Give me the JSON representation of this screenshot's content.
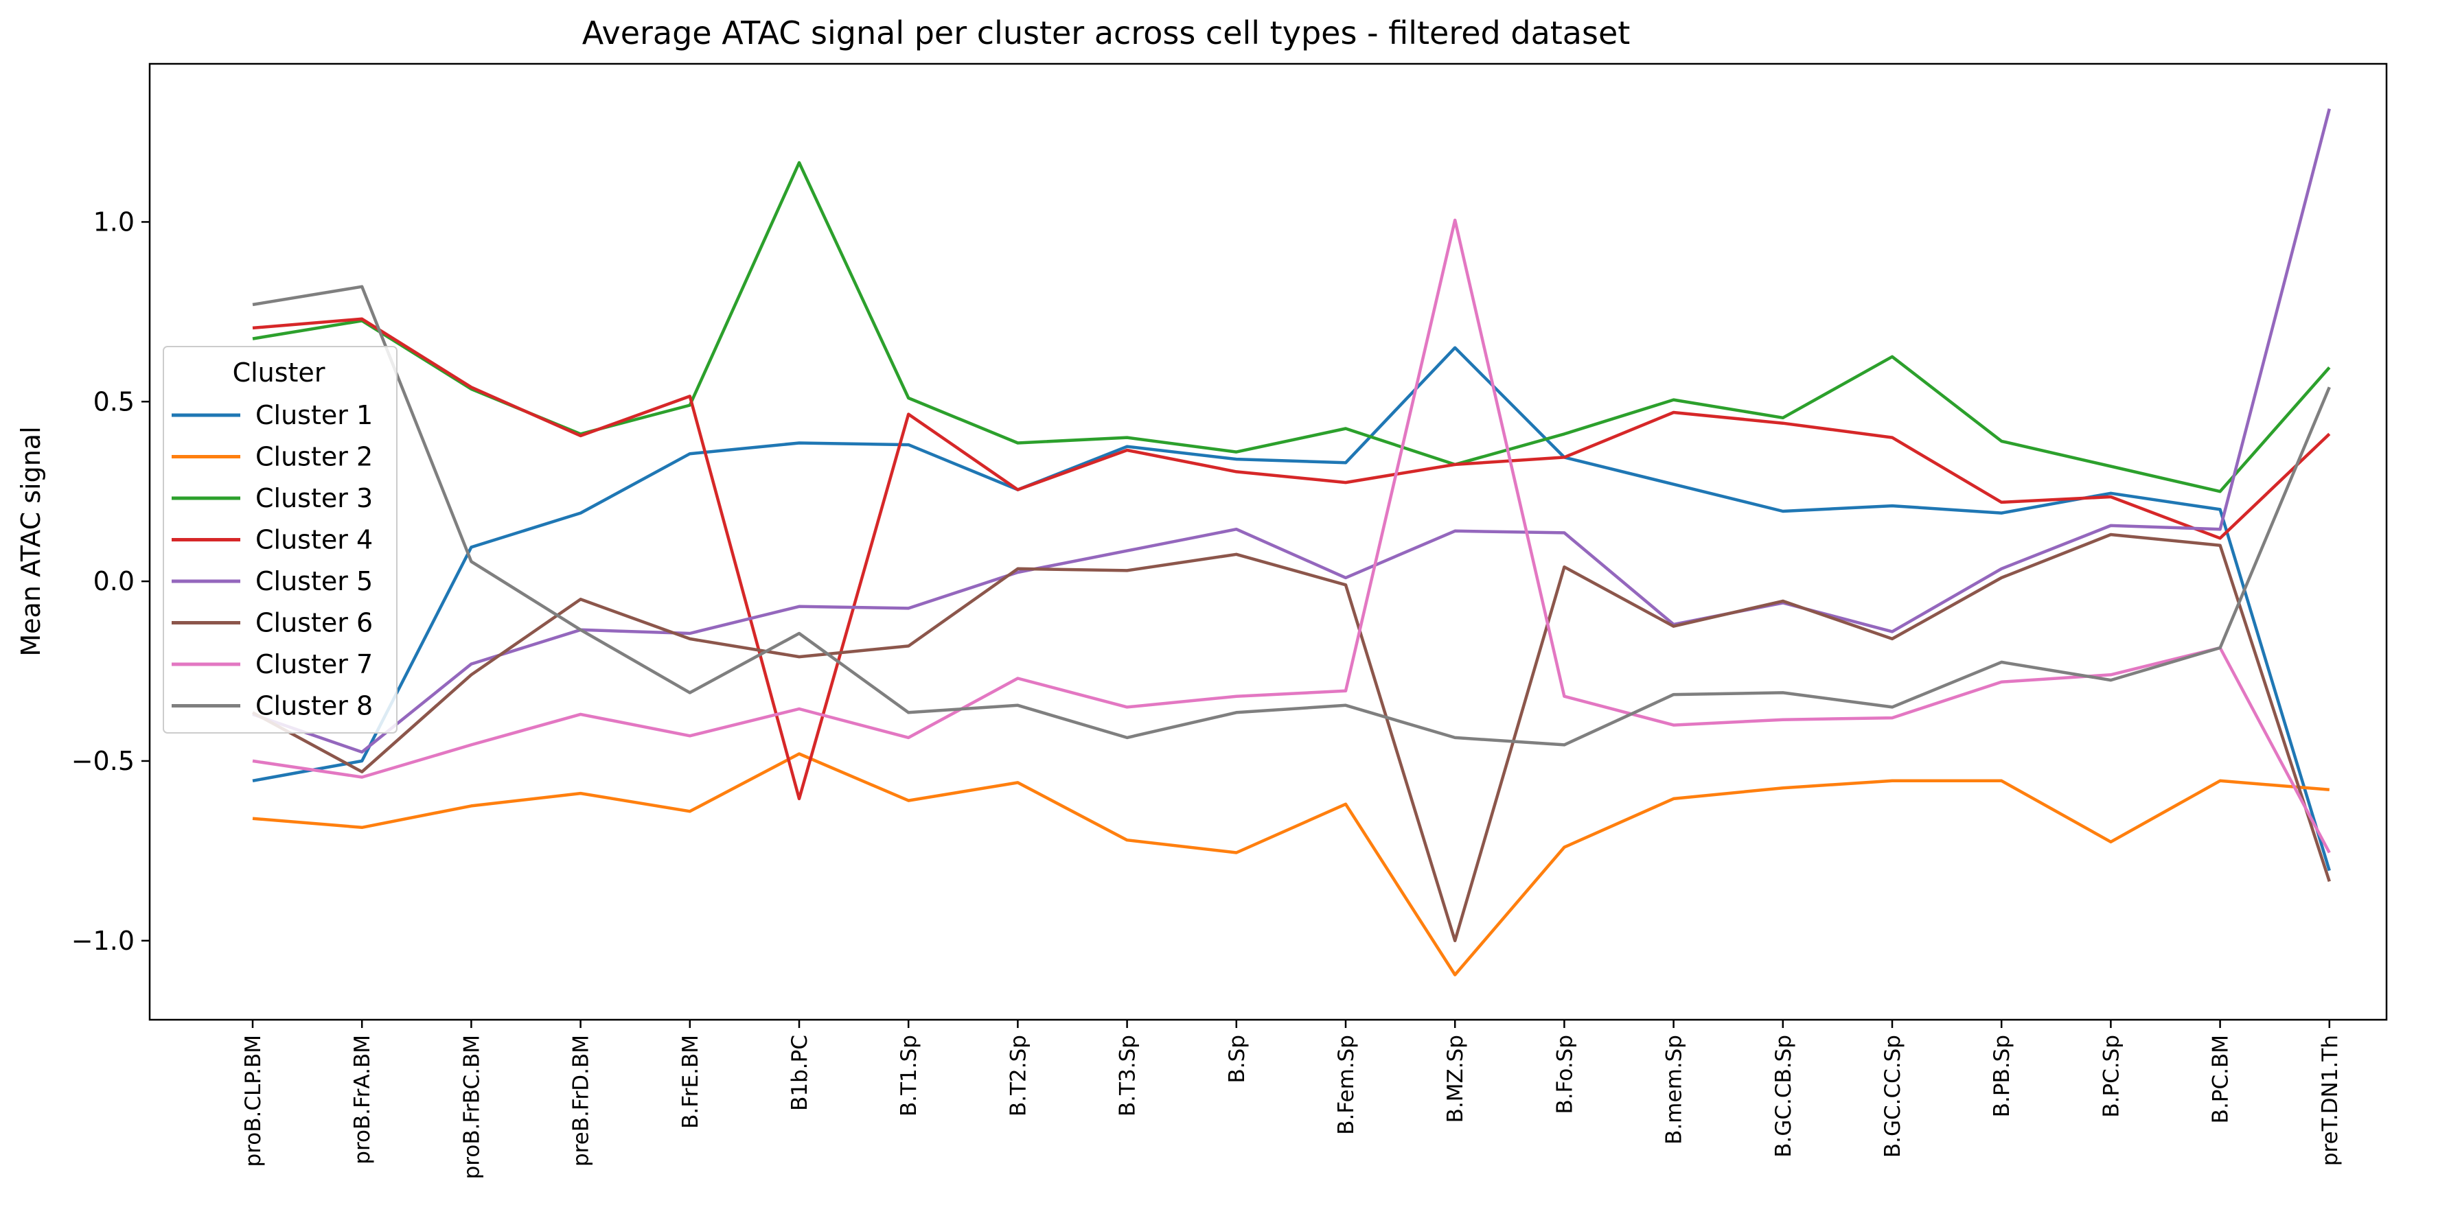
{
  "chart_data": {
    "type": "line",
    "title": "Average ATAC signal per cluster across cell types - filtered dataset",
    "xlabel": "",
    "ylabel": "Mean ATAC signal",
    "ylim": [
      -1.22,
      1.44
    ],
    "yticks": [
      -1.0,
      -0.5,
      0.0,
      0.5,
      1.0
    ],
    "ytick_labels": [
      "−1.0",
      "−0.5",
      "0.0",
      "0.5",
      "1.0"
    ],
    "grid": false,
    "legend": {
      "title": "Cluster",
      "placement": "upper-left"
    },
    "categories": [
      "proB.CLP.BM",
      "proB.FrA.BM",
      "proB.FrBC.BM",
      "preB.FrD.BM",
      "B.FrE.BM",
      "B1b.PC",
      "B.T1.Sp",
      "B.T2.Sp",
      "B.T3.Sp",
      "B.Sp",
      "B.Fem.Sp",
      "B.MZ.Sp",
      "B.Fo.Sp",
      "B.mem.Sp",
      "B.GC.CB.Sp",
      "B.GC.CC.Sp",
      "B.PB.Sp",
      "B.PC.Sp",
      "B.PC.BM",
      "preT.DN1.Th"
    ],
    "series": [
      {
        "name": "Cluster 1",
        "color": "#1f77b4",
        "values": [
          -0.555,
          -0.5,
          0.095,
          0.19,
          0.355,
          0.385,
          0.38,
          0.255,
          0.375,
          0.34,
          0.33,
          0.65,
          0.345,
          0.27,
          0.195,
          0.21,
          0.19,
          0.245,
          0.2,
          -0.805
        ]
      },
      {
        "name": "Cluster 2",
        "color": "#ff7f0e",
        "values": [
          -0.66,
          -0.685,
          -0.625,
          -0.59,
          -0.64,
          -0.48,
          -0.61,
          -0.56,
          -0.72,
          -0.755,
          -0.62,
          -1.095,
          -0.74,
          -0.605,
          -0.575,
          -0.555,
          -0.555,
          -0.725,
          -0.555,
          -0.58
        ]
      },
      {
        "name": "Cluster 3",
        "color": "#2ca02c",
        "values": [
          0.675,
          0.725,
          0.535,
          0.41,
          0.49,
          1.165,
          0.51,
          0.385,
          0.4,
          0.36,
          0.425,
          0.325,
          0.41,
          0.505,
          0.455,
          0.625,
          0.39,
          0.32,
          0.25,
          0.595
        ]
      },
      {
        "name": "Cluster 4",
        "color": "#d62728",
        "values": [
          0.705,
          0.73,
          0.54,
          0.405,
          0.515,
          -0.605,
          0.465,
          0.255,
          0.365,
          0.305,
          0.275,
          0.325,
          0.345,
          0.47,
          0.44,
          0.4,
          0.22,
          0.235,
          0.12,
          0.41
        ]
      },
      {
        "name": "Cluster 5",
        "color": "#9467bd",
        "values": [
          -0.37,
          -0.475,
          -0.23,
          -0.135,
          -0.145,
          -0.07,
          -0.075,
          0.025,
          0.085,
          0.145,
          0.01,
          0.14,
          0.135,
          -0.12,
          -0.06,
          -0.14,
          0.035,
          0.155,
          0.145,
          1.315
        ]
      },
      {
        "name": "Cluster 6",
        "color": "#8c564b",
        "values": [
          -0.365,
          -0.53,
          -0.26,
          -0.05,
          -0.16,
          -0.21,
          -0.18,
          0.035,
          0.03,
          0.075,
          -0.01,
          -1.0,
          0.04,
          -0.125,
          -0.055,
          -0.16,
          0.01,
          0.13,
          0.1,
          -0.835
        ]
      },
      {
        "name": "Cluster 7",
        "color": "#e377c2",
        "values": [
          -0.5,
          -0.545,
          -0.455,
          -0.37,
          -0.43,
          -0.355,
          -0.435,
          -0.27,
          -0.35,
          -0.32,
          -0.305,
          1.005,
          -0.32,
          -0.4,
          -0.385,
          -0.38,
          -0.28,
          -0.26,
          -0.185,
          -0.755
        ]
      },
      {
        "name": "Cluster 8",
        "color": "#7f7f7f",
        "values": [
          0.77,
          0.82,
          0.055,
          -0.135,
          -0.31,
          -0.145,
          -0.365,
          -0.345,
          -0.435,
          -0.365,
          -0.345,
          -0.435,
          -0.455,
          -0.315,
          -0.31,
          -0.35,
          -0.225,
          -0.275,
          -0.185,
          0.54
        ]
      }
    ]
  }
}
